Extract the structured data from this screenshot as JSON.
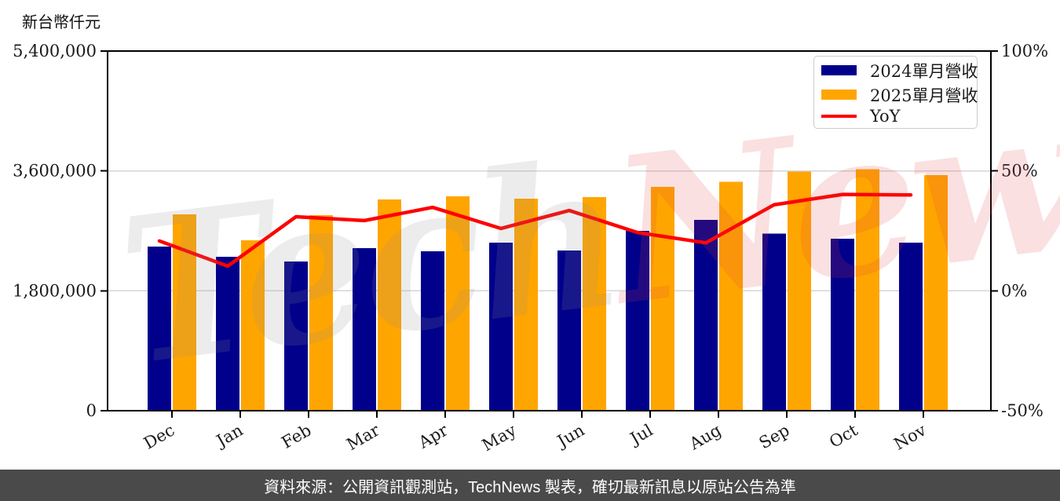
{
  "axis_unit_title": "新台幣仟元",
  "chart_data": {
    "type": "bar+line",
    "categories": [
      "Dec",
      "Jan",
      "Feb",
      "Mar",
      "Apr",
      "May",
      "Jun",
      "Jul",
      "Aug",
      "Sep",
      "Oct",
      "Nov"
    ],
    "series": [
      {
        "name": "2024單月營收",
        "color": "#00008B",
        "values": [
          2464000,
          2311000,
          2240000,
          2441000,
          2393000,
          2523000,
          2405000,
          2700000,
          2865000,
          2656000,
          2582000,
          2523000
        ]
      },
      {
        "name": "2025單月營收",
        "color": "#FFA500",
        "values": [
          2948000,
          2558000,
          2936000,
          3172000,
          3219000,
          3183000,
          3207000,
          3360000,
          3434000,
          3592000,
          3628000,
          3537000
        ]
      }
    ],
    "line_series": {
      "name": "YoY",
      "color": "#FF0000",
      "unit": "%",
      "values": [
        20.8,
        10.3,
        30.9,
        29.3,
        34.8,
        26.0,
        33.5,
        24.3,
        20.0,
        35.9,
        40.2,
        40.0
      ]
    },
    "left_axis": {
      "label": "新台幣仟元",
      "min": 0,
      "max": 5400000,
      "tick_values": [
        0,
        1800000,
        3600000,
        5400000
      ],
      "tick_labels": [
        "0",
        "1,800,000",
        "3,600,000",
        "5,400,000"
      ],
      "grid_values": [
        1800000,
        3600000
      ]
    },
    "right_axis": {
      "min": -50,
      "max": 100,
      "tick_values": [
        -50,
        0,
        50,
        100
      ],
      "tick_labels": [
        "-50%",
        "0%",
        "50%",
        "100%"
      ]
    },
    "grid": true,
    "legend_position": "top-right"
  },
  "legend": {
    "items": [
      {
        "label": "2024單月營收"
      },
      {
        "label": "2025單月營收"
      },
      {
        "label": "YoY"
      }
    ]
  },
  "watermark": {
    "part1": "Tech",
    "part2": "News"
  },
  "footer": {
    "text": "資料來源：公開資訊觀測站，TechNews 製表，確切最新訊息以原站公告為準"
  }
}
